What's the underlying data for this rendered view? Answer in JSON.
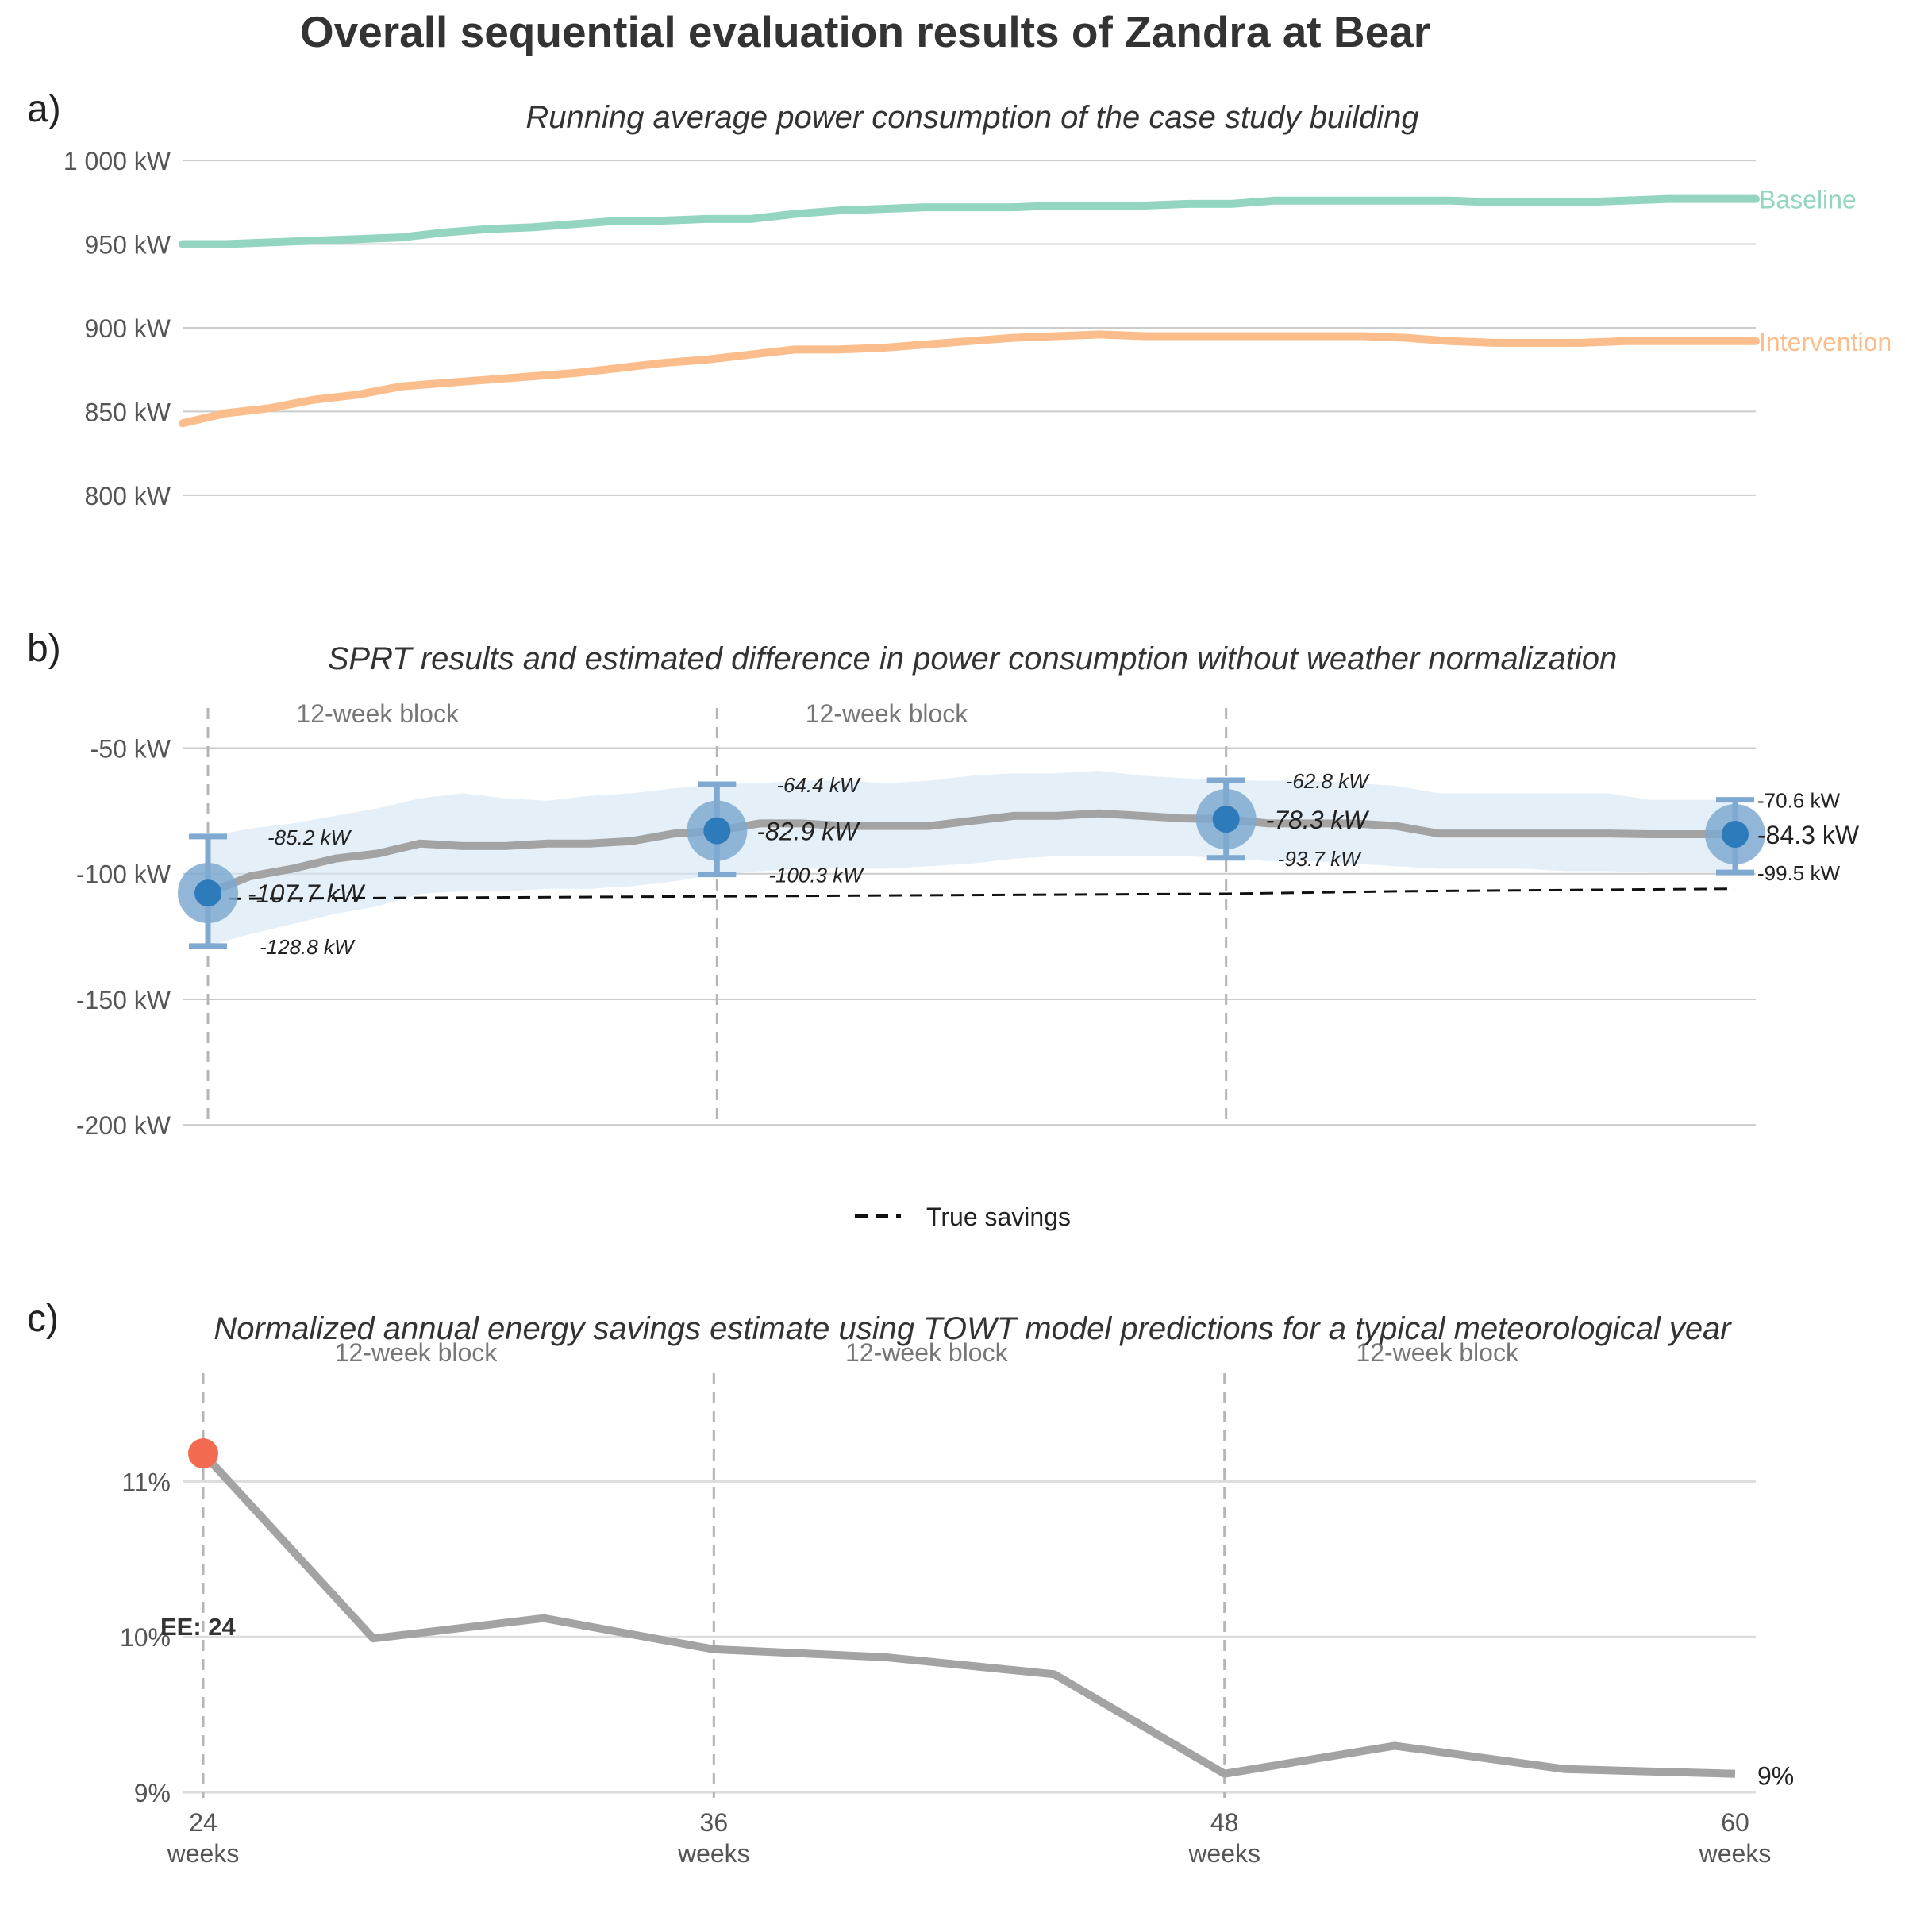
{
  "title": "Overall sequential evaluation results of Zandra at Bear",
  "colors": {
    "baseline": "#93d5c1",
    "intervention": "#fbbd8c",
    "estimate_line": "#a3a3a3",
    "ci_band": "#d6e6f4",
    "marker": "#2e7bbb",
    "marker_halo": "#7fa9d0",
    "ee_point": "#f26a4f",
    "true_savings": "#111111"
  },
  "block_label": "12-week block",
  "chart_data": [
    {
      "panel": "a)",
      "type": "line",
      "title": "Running average power consumption of the case study building",
      "xlim": [
        24,
        60
      ],
      "ylim": [
        780,
        1010
      ],
      "yticks": [
        800,
        850,
        900,
        950,
        1000
      ],
      "ytick_labels": [
        "800 kW",
        "850 kW",
        "900 kW",
        "950 kW",
        "1 000 kW"
      ],
      "grid": true,
      "series": [
        {
          "name": "Baseline",
          "x": [
            24,
            25,
            26,
            27,
            28,
            29,
            30,
            31,
            32,
            33,
            34,
            35,
            36,
            37,
            38,
            39,
            40,
            41,
            42,
            43,
            44,
            45,
            46,
            47,
            48,
            49,
            50,
            51,
            52,
            53,
            54,
            55,
            56,
            57,
            58,
            59,
            60
          ],
          "values": [
            950,
            950,
            951,
            952,
            953,
            954,
            957,
            959,
            960,
            962,
            964,
            964,
            965,
            965,
            968,
            970,
            971,
            972,
            972,
            972,
            973,
            973,
            973,
            974,
            974,
            976,
            976,
            976,
            976,
            976,
            975,
            975,
            975,
            976,
            977,
            977,
            977
          ]
        },
        {
          "name": "Intervention",
          "x": [
            24,
            25,
            26,
            27,
            28,
            29,
            30,
            31,
            32,
            33,
            34,
            35,
            36,
            37,
            38,
            39,
            40,
            41,
            42,
            43,
            44,
            45,
            46,
            47,
            48,
            49,
            50,
            51,
            52,
            53,
            54,
            55,
            56,
            57,
            58,
            59,
            60
          ],
          "values": [
            843,
            849,
            852,
            857,
            860,
            865,
            867,
            869,
            871,
            873,
            876,
            879,
            881,
            884,
            887,
            887,
            888,
            890,
            892,
            894,
            895,
            896,
            895,
            895,
            895,
            895,
            895,
            895,
            894,
            892,
            891,
            891,
            891,
            892,
            892,
            892,
            892
          ]
        }
      ]
    },
    {
      "panel": "b)",
      "type": "line",
      "title": "SPRT results and estimated difference in power consumption without weather normalization",
      "xlim": [
        24,
        60
      ],
      "ylim": [
        -205,
        -35
      ],
      "yticks": [
        -200,
        -150,
        -100,
        -50
      ],
      "ytick_labels": [
        "-200 kW",
        "-150 kW",
        "-100 kW",
        "-50 kW"
      ],
      "grid": true,
      "legend": {
        "label": "True savings",
        "position": "bottom"
      },
      "estimate": {
        "x": [
          24,
          25,
          26,
          27,
          28,
          29,
          30,
          31,
          32,
          33,
          34,
          35,
          36,
          37,
          38,
          39,
          40,
          41,
          42,
          43,
          44,
          45,
          46,
          47,
          48,
          49,
          50,
          51,
          52,
          53,
          54,
          55,
          56,
          57,
          58,
          59,
          60
        ],
        "values": [
          -107.7,
          -101,
          -98,
          -94,
          -92,
          -88,
          -89,
          -89,
          -88,
          -88,
          -87,
          -84,
          -82.9,
          -80,
          -80,
          -81,
          -81,
          -81,
          -79,
          -77,
          -77,
          -76,
          -77,
          -78,
          -78.3,
          -80,
          -80,
          -80,
          -81,
          -84,
          -84,
          -84,
          -84,
          -84,
          -84.3,
          -84.3,
          -84.3
        ],
        "upper": [
          -85.2,
          -82,
          -80,
          -77,
          -74,
          -70,
          -68,
          -70,
          -71,
          -69,
          -68,
          -66,
          -64.4,
          -64,
          -63,
          -63,
          -64,
          -63,
          -61,
          -60,
          -60,
          -59,
          -61,
          -62,
          -62.8,
          -63,
          -63,
          -64,
          -65,
          -68,
          -68,
          -68,
          -68,
          -68,
          -70.6,
          -70.6,
          -70.6
        ],
        "lower": [
          -128.8,
          -124,
          -120,
          -116,
          -113,
          -108,
          -107,
          -107,
          -106,
          -106,
          -105,
          -103,
          -100.3,
          -99,
          -98,
          -98,
          -98,
          -97,
          -96,
          -94,
          -93,
          -93,
          -93,
          -93,
          -93.7,
          -95,
          -95,
          -96,
          -97,
          -98,
          -98,
          -98,
          -99,
          -99,
          -99.5,
          -99.5,
          -99.5
        ]
      },
      "true_savings": {
        "x": [
          24,
          36,
          48,
          52,
          60
        ],
        "values": [
          -110,
          -109,
          -108,
          -107,
          -106
        ]
      },
      "checkpoints": [
        {
          "x": 24,
          "value": -107.7,
          "upper": -85.2,
          "lower": -128.8,
          "label": "-107.7 kW",
          "upper_label": "-85.2 kW",
          "lower_label": "-128.8 kW"
        },
        {
          "x": 36,
          "value": -82.9,
          "upper": -64.4,
          "lower": -100.3,
          "label": "-82.9 kW",
          "upper_label": "-64.4 kW",
          "lower_label": "-100.3 kW"
        },
        {
          "x": 48,
          "value": -78.3,
          "upper": -62.8,
          "lower": -93.7,
          "label": "-78.3 kW",
          "upper_label": "-62.8 kW",
          "lower_label": "-93.7 kW"
        },
        {
          "x": 60,
          "value": -84.3,
          "upper": -70.6,
          "lower": -99.5,
          "label": "-84.3 kW",
          "upper_label": "-70.6 kW",
          "lower_label": "-99.5 kW"
        }
      ],
      "block_boundaries": [
        24,
        36,
        48
      ]
    },
    {
      "panel": "c)",
      "type": "line",
      "title": "Normalized annual energy savings estimate using TOWT model predictions for a typical meteorological year",
      "xlim": [
        24,
        60
      ],
      "ylim": [
        8.96,
        11.9
      ],
      "yticks": [
        9,
        10,
        11
      ],
      "ytick_labels": [
        "9%",
        "10%",
        "11%"
      ],
      "xticks": [
        24,
        36,
        48,
        60
      ],
      "xtick_labels": [
        "24",
        "36",
        "48",
        "60"
      ],
      "xtick_sublabel": "weeks",
      "grid": true,
      "series": [
        {
          "x": [
            24,
            28,
            32,
            36,
            40,
            44,
            48,
            52,
            56,
            60
          ],
          "values": [
            11.18,
            9.99,
            10.12,
            9.92,
            9.87,
            9.76,
            9.12,
            9.3,
            9.15,
            9.12
          ]
        }
      ],
      "highlight": {
        "x": 24,
        "value": 11.18,
        "label": "EE: 24"
      },
      "end_label": "9%",
      "block_boundaries": [
        24,
        36,
        48
      ]
    }
  ]
}
